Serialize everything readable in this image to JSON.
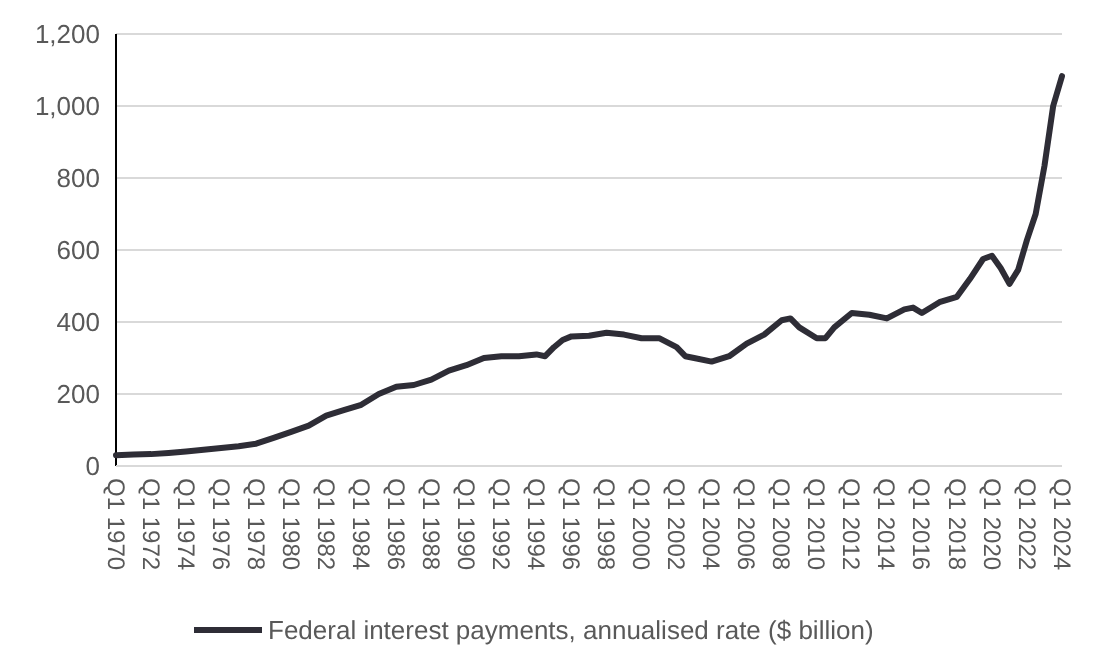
{
  "chart_data": {
    "type": "line",
    "x": [
      "1970-01",
      "1971-01",
      "1972-01",
      "1973-01",
      "1974-01",
      "1975-01",
      "1976-01",
      "1977-01",
      "1978-01",
      "1979-01",
      "1980-01",
      "1981-01",
      "1982-01",
      "1983-01",
      "1984-01",
      "1985-01",
      "1986-01",
      "1987-01",
      "1988-01",
      "1989-01",
      "1990-01",
      "1991-01",
      "1992-01",
      "1993-01",
      "1994-01",
      "1994-07",
      "1995-01",
      "1995-07",
      "1996-01",
      "1997-01",
      "1998-01",
      "1999-01",
      "2000-01",
      "2001-01",
      "2002-01",
      "2002-07",
      "2003-01",
      "2004-01",
      "2005-01",
      "2006-01",
      "2007-01",
      "2008-01",
      "2008-07",
      "2009-01",
      "2010-01",
      "2010-07",
      "2011-01",
      "2012-01",
      "2013-01",
      "2014-01",
      "2015-01",
      "2015-07",
      "2016-01",
      "2017-01",
      "2018-01",
      "2018-10",
      "2019-07",
      "2020-01",
      "2020-07",
      "2021-01",
      "2021-07",
      "2022-01",
      "2022-07",
      "2023-01",
      "2023-07",
      "2024-01"
    ],
    "series": [
      {
        "name": "Federal interest payments, annualised rate ($ billion)",
        "color": "#2e2d36",
        "values": [
          30,
          32,
          33,
          36,
          40,
          45,
          50,
          55,
          62,
          78,
          95,
          112,
          140,
          155,
          170,
          200,
          220,
          225,
          240,
          265,
          280,
          300,
          305,
          305,
          310,
          305,
          330,
          350,
          360,
          362,
          370,
          365,
          355,
          355,
          330,
          305,
          300,
          290,
          305,
          340,
          365,
          405,
          410,
          385,
          355,
          355,
          385,
          425,
          420,
          410,
          435,
          440,
          425,
          455,
          470,
          520,
          575,
          584,
          550,
          506,
          545,
          628,
          700,
          834,
          1000,
          1083
        ]
      }
    ],
    "xlim": [
      "1970-01",
      "2024-01"
    ],
    "xticks": [
      {
        "value": "1970-01",
        "label": "Q1 1970"
      },
      {
        "value": "1972-01",
        "label": "Q1 1972"
      },
      {
        "value": "1974-01",
        "label": "Q1 1974"
      },
      {
        "value": "1976-01",
        "label": "Q1 1976"
      },
      {
        "value": "1978-01",
        "label": "Q1 1978"
      },
      {
        "value": "1980-01",
        "label": "Q1 1980"
      },
      {
        "value": "1982-01",
        "label": "Q1 1982"
      },
      {
        "value": "1984-01",
        "label": "Q1 1984"
      },
      {
        "value": "1986-01",
        "label": "Q1 1986"
      },
      {
        "value": "1988-01",
        "label": "Q1 1988"
      },
      {
        "value": "1990-01",
        "label": "Q1 1990"
      },
      {
        "value": "1992-01",
        "label": "Q1 1992"
      },
      {
        "value": "1994-01",
        "label": "Q1 1994"
      },
      {
        "value": "1996-01",
        "label": "Q1 1996"
      },
      {
        "value": "1998-01",
        "label": "Q1 1998"
      },
      {
        "value": "2000-01",
        "label": "Q1 2000"
      },
      {
        "value": "2002-01",
        "label": "Q1 2002"
      },
      {
        "value": "2004-01",
        "label": "Q1 2004"
      },
      {
        "value": "2006-01",
        "label": "Q1 2006"
      },
      {
        "value": "2008-01",
        "label": "Q1 2008"
      },
      {
        "value": "2010-01",
        "label": "Q1 2010"
      },
      {
        "value": "2012-01",
        "label": "Q1 2012"
      },
      {
        "value": "2014-01",
        "label": "Q1 2014"
      },
      {
        "value": "2016-01",
        "label": "Q1 2016"
      },
      {
        "value": "2018-01",
        "label": "Q1 2018"
      },
      {
        "value": "2020-01",
        "label": "Q1 2020"
      },
      {
        "value": "2022-01",
        "label": "Q1 2022"
      },
      {
        "value": "2024-01",
        "label": "Q1 2024"
      }
    ],
    "ylim": [
      0,
      1200
    ],
    "yticks": [
      {
        "value": 0,
        "label": "0"
      },
      {
        "value": 200,
        "label": "200"
      },
      {
        "value": 400,
        "label": "400"
      },
      {
        "value": 600,
        "label": "600"
      },
      {
        "value": 800,
        "label": "800"
      },
      {
        "value": 1000,
        "label": "1,000"
      },
      {
        "value": 1200,
        "label": "1,200"
      }
    ],
    "grid": "y",
    "legend": "bottom"
  }
}
